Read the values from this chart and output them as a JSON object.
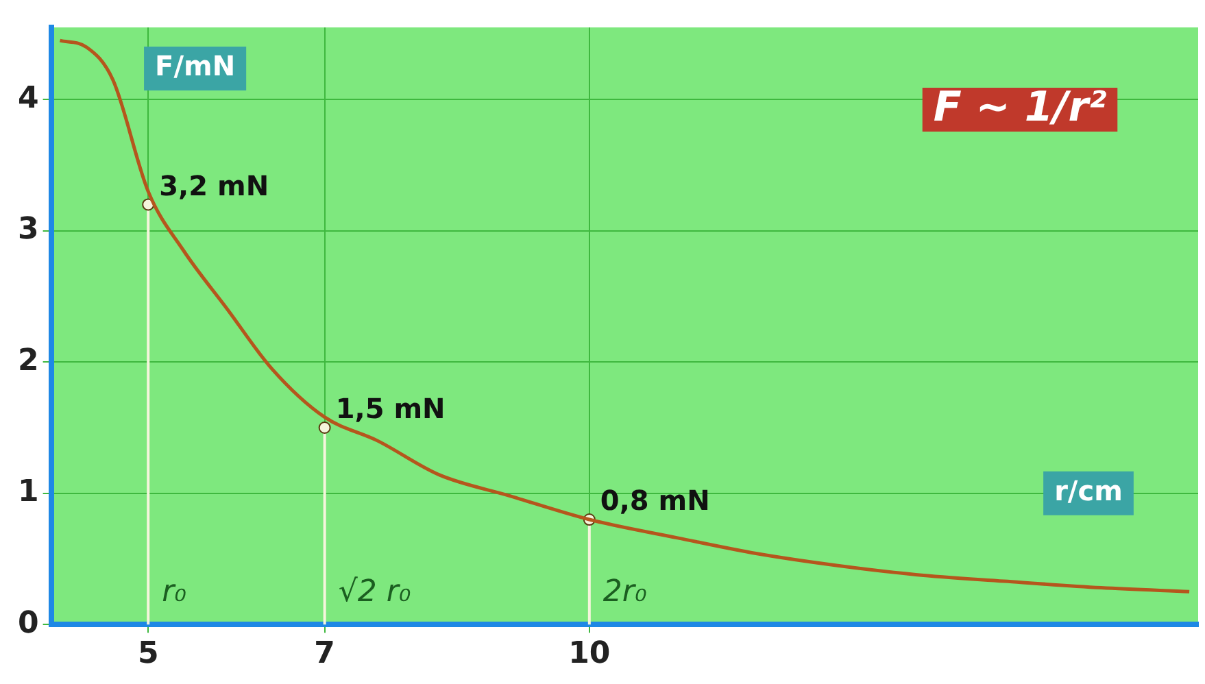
{
  "chart_data": {
    "type": "line",
    "xlabel": "r/cm",
    "ylabel": "F/mN",
    "xlim": [
      3.9,
      16.9
    ],
    "ylim": [
      0,
      4.55
    ],
    "xticks": [
      5,
      7,
      10
    ],
    "yticks": [
      0,
      1,
      2,
      3,
      4
    ],
    "grid": true,
    "legend": false,
    "series": [
      {
        "color": "#b5561d",
        "x": [
          4.0,
          4.3,
          4.6,
          5.0,
          5.4,
          5.9,
          6.4,
          7.0,
          7.6,
          8.3,
          9.1,
          10.0,
          11.0,
          11.9,
          12.8,
          13.7,
          14.7,
          15.8,
          16.8
        ],
        "values": [
          4.45,
          4.4,
          4.15,
          3.3,
          2.85,
          2.4,
          1.95,
          1.58,
          1.4,
          1.14,
          0.98,
          0.8,
          0.66,
          0.54,
          0.45,
          0.38,
          0.33,
          0.28,
          0.25
        ]
      },
      {
        "type": "lollipop",
        "color": "#f5f5dc",
        "x": [
          5,
          7,
          10
        ],
        "values": [
          3.2,
          1.5,
          0.8
        ],
        "value_labels": [
          "3,2 mN",
          "1,5 mN",
          "0,8 mN"
        ]
      }
    ],
    "annotations": [
      "F ~ 1/r²",
      "r₀",
      "√2 r₀",
      "2r₀"
    ]
  }
}
